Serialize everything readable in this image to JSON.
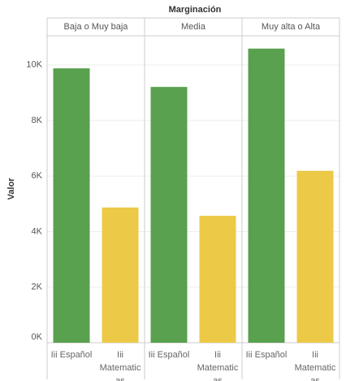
{
  "chart_data": {
    "type": "bar",
    "title": "Marginación",
    "y_label": "Valor",
    "categories": [
      "Iii Español",
      "Iii Matematicas"
    ],
    "colors": [
      "#59a14f",
      "#edc948"
    ],
    "facets": [
      {
        "name": "Baja o Muy baja",
        "values": [
          9880,
          4870
        ]
      },
      {
        "name": "Media",
        "values": [
          9210,
          4570
        ]
      },
      {
        "name": "Muy alta o Alta",
        "values": [
          10590,
          6190
        ]
      }
    ],
    "ylim": [
      0,
      11050
    ],
    "yticks": [
      {
        "value": 0,
        "label": "0K"
      },
      {
        "value": 2000,
        "label": "2K"
      },
      {
        "value": 4000,
        "label": "4K"
      },
      {
        "value": 6000,
        "label": "6K"
      },
      {
        "value": 8000,
        "label": "8K"
      },
      {
        "value": 10000,
        "label": "10K"
      }
    ],
    "grid": true
  }
}
